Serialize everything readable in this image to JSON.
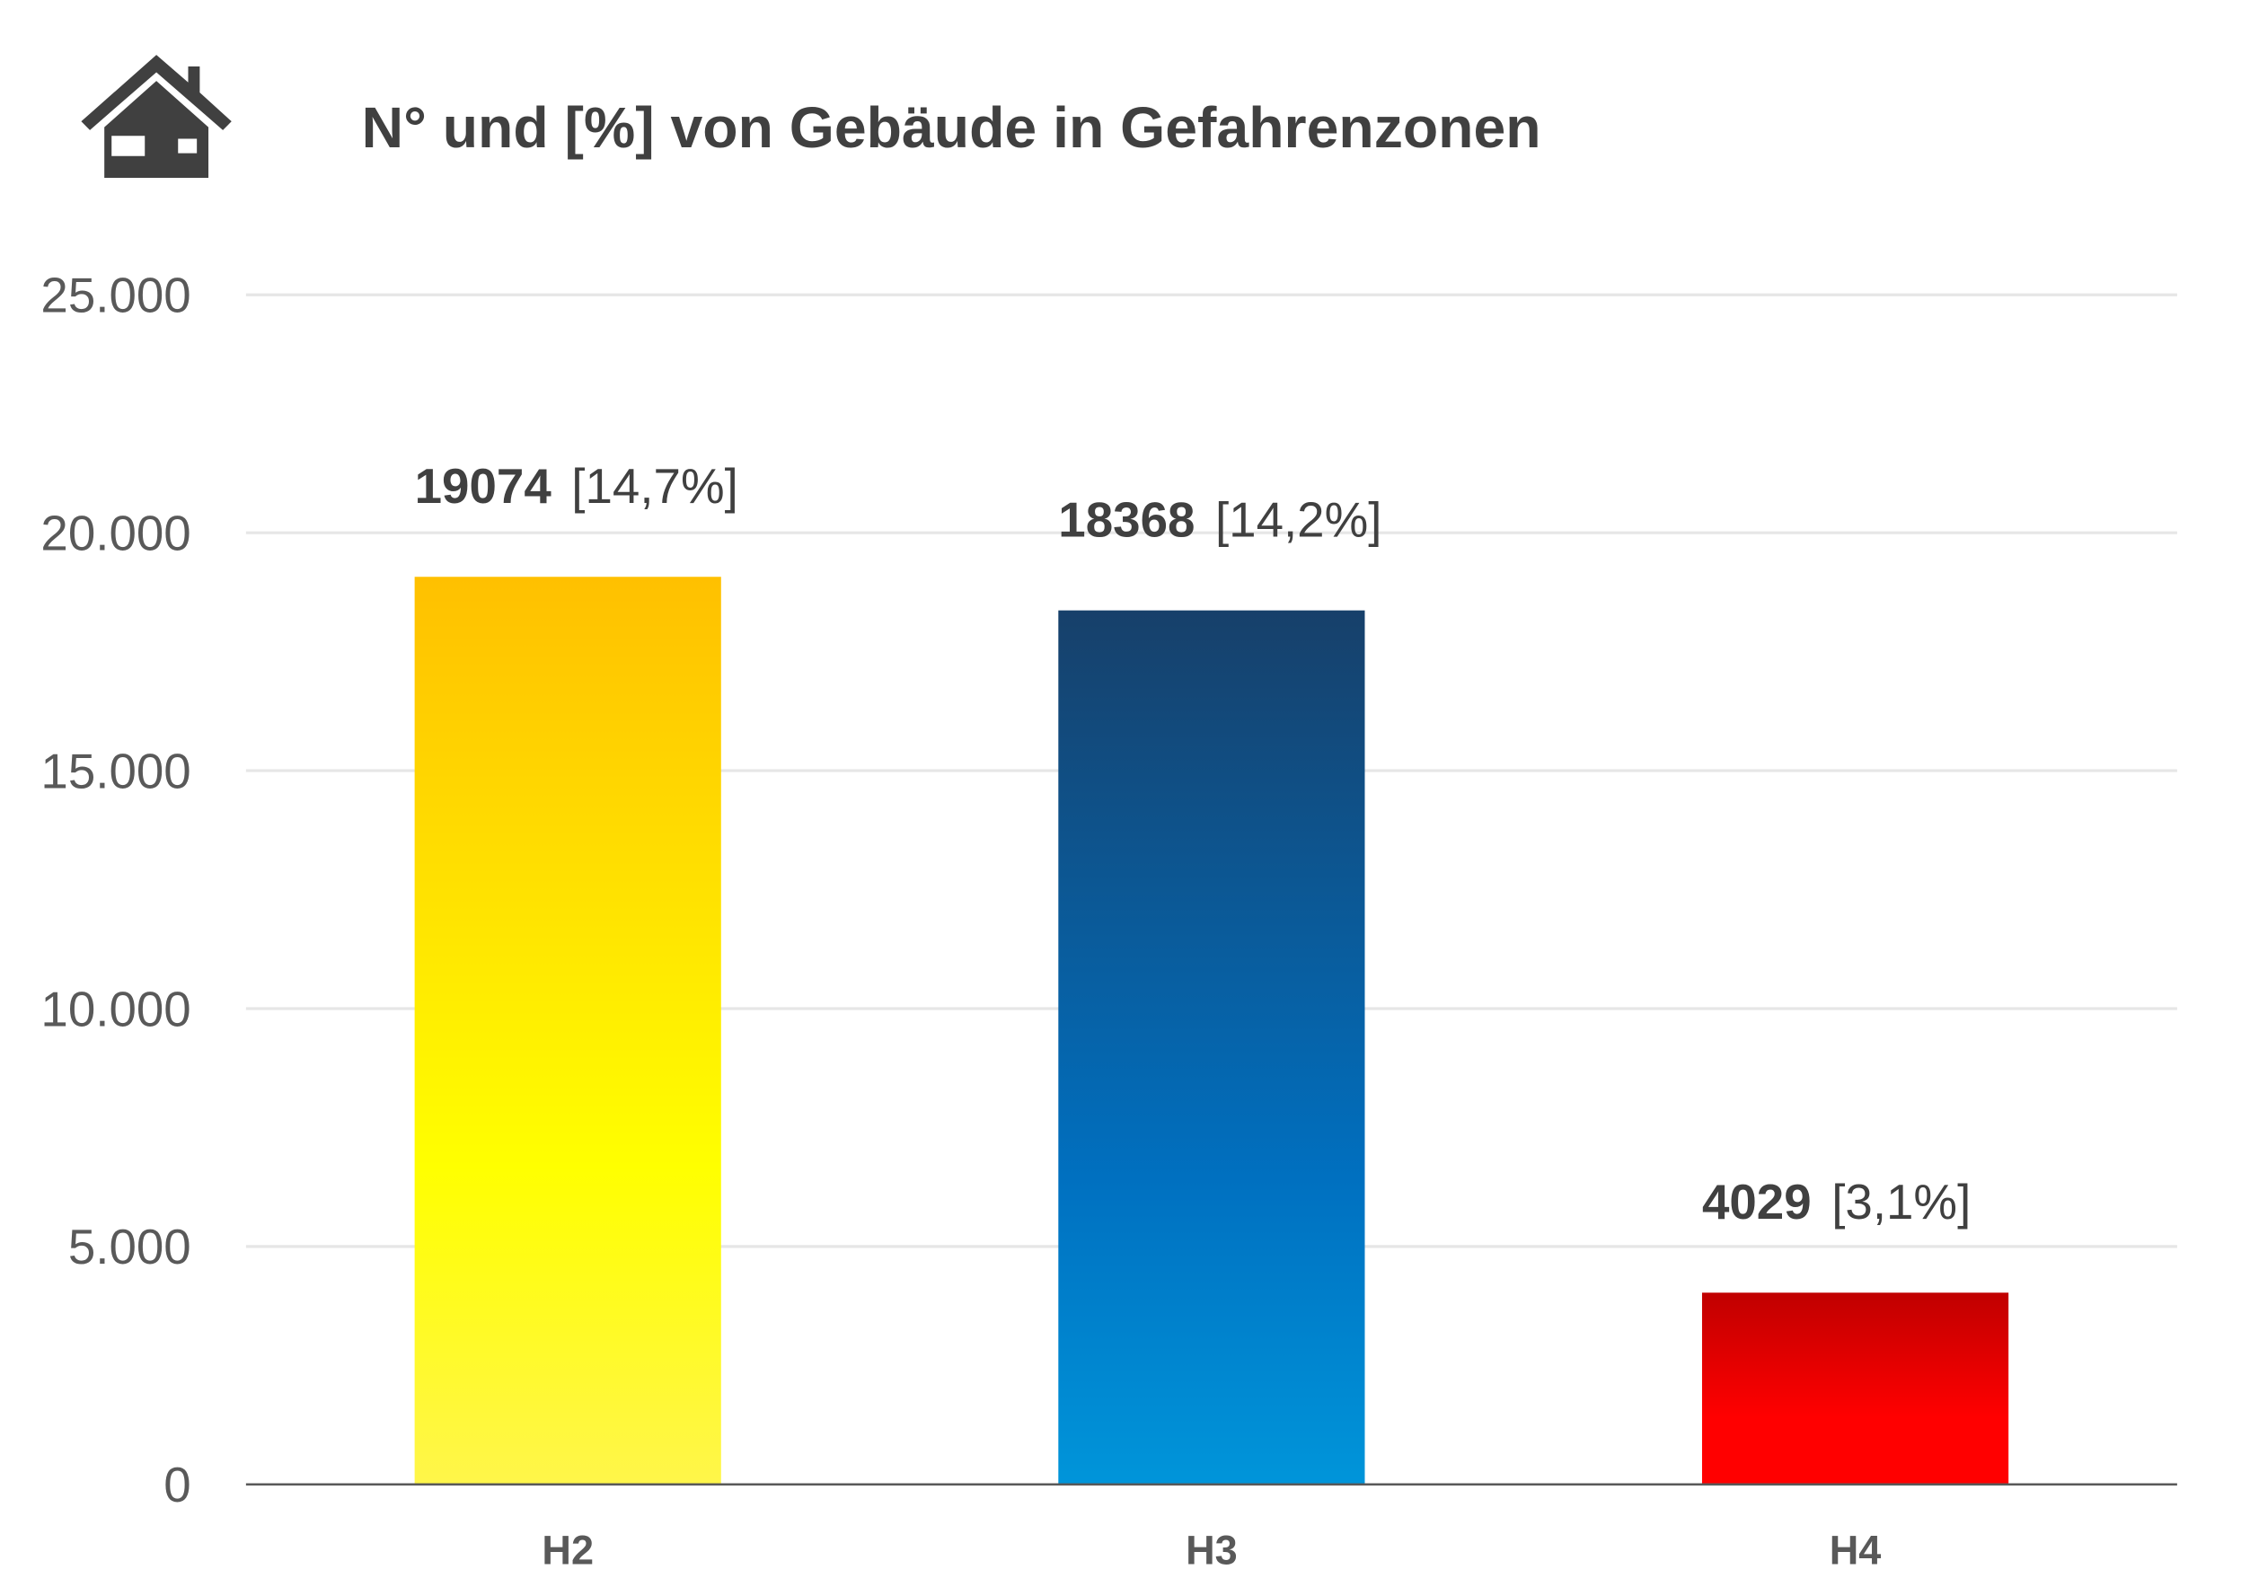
{
  "chart_data": {
    "type": "bar",
    "title": "N° und [%] von Gebäude in Gefahrenzonen",
    "icon": "house-icon",
    "categories": [
      "H2",
      "H3",
      "H4"
    ],
    "values": [
      19074,
      18368,
      4029
    ],
    "value_labels": [
      "19074",
      "18368",
      "4029"
    ],
    "percent_labels": [
      "[14,7%]",
      "[14,2%]",
      "[3,1%]"
    ],
    "colors": [
      {
        "top": "#ffc000",
        "bottom": "#ffff00",
        "end": "#fff64a"
      },
      {
        "top": "#17406a",
        "bottom": "#0070c0",
        "end": "#0095da"
      },
      {
        "top": "#c00000",
        "bottom": "#ff0000",
        "end": "#ff0000"
      }
    ],
    "ylim": [
      0,
      25000
    ],
    "yticks": [
      0,
      5000,
      10000,
      15000,
      20000,
      25000
    ],
    "ytick_labels": [
      "0",
      "5.000",
      "10.000",
      "15.000",
      "20.000",
      "25.000"
    ],
    "grid": true,
    "xlabel": "",
    "ylabel": ""
  }
}
